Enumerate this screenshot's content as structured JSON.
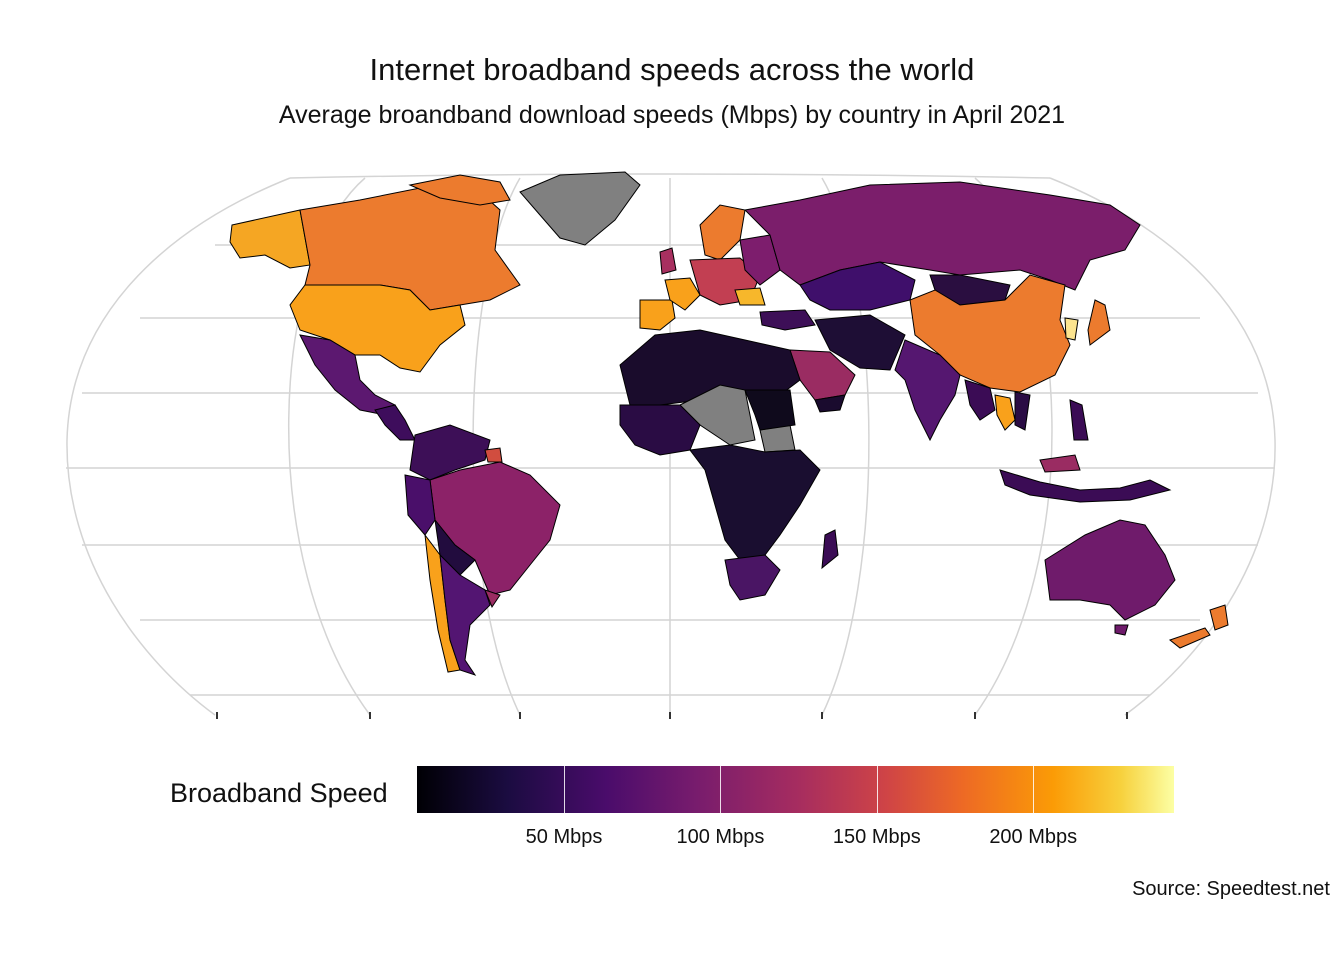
{
  "title": "Internet broadband speeds across the world",
  "subtitle": "Average broandband download speeds (Mbps) by country in April 2021",
  "legend": {
    "title": "Broadband Speed",
    "ticks": [
      {
        "value": 50,
        "label": "50 Mbps"
      },
      {
        "value": 100,
        "label": "100 Mbps"
      },
      {
        "value": 150,
        "label": "150 Mbps"
      },
      {
        "value": 200,
        "label": "200 Mbps"
      }
    ],
    "range": [
      3,
      245
    ],
    "palette": "inferno"
  },
  "caption": "Source: Speedtest.net",
  "colors": {
    "no_data": "#808080",
    "graticule": "#d4d4d4",
    "border": "#000000"
  },
  "chart_data": {
    "type": "choropleth",
    "projection": "Robinson",
    "approx_values_mbps": {
      "United States": 190,
      "Canada": 170,
      "Greenland": null,
      "Mexico": 60,
      "Brazil": 95,
      "Argentina": 60,
      "Chile": 200,
      "Russia": 85,
      "China": 170,
      "India": 60,
      "Australia": 85,
      "New Zealand": 165,
      "Spain": 195,
      "France": 195,
      "Saudi Arabia": 110,
      "Japan": 165,
      "South Korea": 230,
      "Thailand": 210,
      "Kazakhstan": 50,
      "South Africa": 45,
      "Central Africa": 20
    }
  }
}
